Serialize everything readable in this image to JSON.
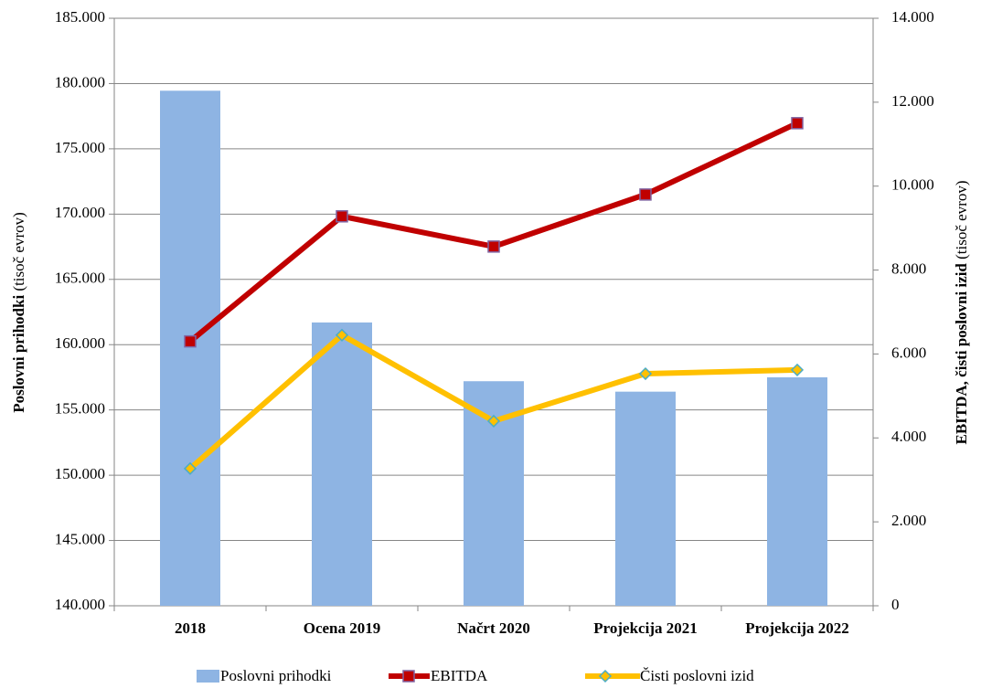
{
  "chart_data": {
    "type": "bar_line",
    "categories": [
      "2018",
      "Ocena 2019",
      "Načrt 2020",
      "Projekcija 2021",
      "Projekcija 2022"
    ],
    "series": [
      {
        "name": "Poslovni prihodki",
        "type": "bar",
        "color": "#8eb4e3",
        "values": [
          179450,
          161700,
          157200,
          156400,
          157500
        ]
      },
      {
        "name": "EBITDA",
        "type": "line",
        "axis": "y2",
        "color": "#c00000",
        "marker": "square",
        "values": [
          6300,
          9280,
          8560,
          9800,
          11500
        ]
      },
      {
        "name": "Čisti poslovni izid",
        "type": "line",
        "axis": "y2",
        "color": "#ffc000",
        "marker": "diamond",
        "values": [
          3270,
          6450,
          4400,
          5530,
          5620
        ]
      }
    ],
    "ylabel": "Poslovni prihodki",
    "ylabel_unit": "(tisoč evrov)",
    "y2label": "EBITDA, čisti poslovni izid",
    "y2label_unit": "(tisoč evrov)",
    "ylim": [
      140000,
      185000
    ],
    "yticks": [
      {
        "value": 140000,
        "label": "140.000"
      },
      {
        "value": 145000,
        "label": "145.000"
      },
      {
        "value": 150000,
        "label": "150.000"
      },
      {
        "value": 155000,
        "label": "155.000"
      },
      {
        "value": 160000,
        "label": "160.000"
      },
      {
        "value": 165000,
        "label": "165.000"
      },
      {
        "value": 170000,
        "label": "170.000"
      },
      {
        "value": 175000,
        "label": "175.000"
      },
      {
        "value": 180000,
        "label": "180.000"
      },
      {
        "value": 185000,
        "label": "185.000"
      }
    ],
    "y2lim": [
      0,
      14000
    ],
    "y2ticks": [
      0,
      {
        "value": 2000,
        "label": "2.000"
      },
      {
        "value": 4000,
        "label": "4.000"
      },
      {
        "value": 6000,
        "label": "6.000"
      },
      {
        "value": 8000,
        "label": "8.000"
      },
      {
        "value": 10000,
        "label": "10.000"
      },
      {
        "value": 12000,
        "label": "12.000"
      },
      {
        "value": 14000,
        "label": "14.000"
      }
    ],
    "grid": true,
    "legend": "bottom"
  }
}
